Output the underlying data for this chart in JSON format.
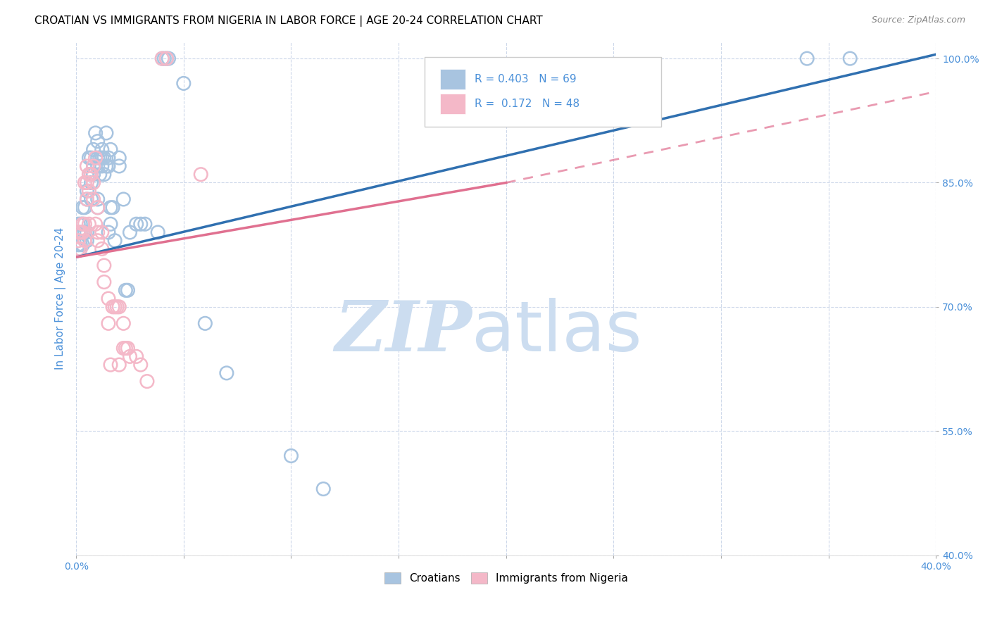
{
  "title": "CROATIAN VS IMMIGRANTS FROM NIGERIA IN LABOR FORCE | AGE 20-24 CORRELATION CHART",
  "source": "Source: ZipAtlas.com",
  "ylabel": "In Labor Force | Age 20-24",
  "xlim": [
    0.0,
    0.4
  ],
  "ylim": [
    0.4,
    1.02
  ],
  "ytick_labels": [
    "40.0%",
    "55.0%",
    "70.0%",
    "85.0%",
    "100.0%"
  ],
  "ytick_vals": [
    0.4,
    0.55,
    0.7,
    0.85,
    1.0
  ],
  "xtick_positions": [
    0.0,
    0.05,
    0.1,
    0.15,
    0.2,
    0.25,
    0.3,
    0.35,
    0.4
  ],
  "xtick_labels_sparse": [
    "0.0%",
    "",
    "",
    "",
    "",
    "",
    "",
    "",
    "40.0%"
  ],
  "blue_R": 0.403,
  "blue_N": 69,
  "pink_R": 0.172,
  "pink_N": 48,
  "blue_color": "#a8c4e0",
  "pink_color": "#f4b8c8",
  "blue_line_color": "#3070b0",
  "pink_line_color": "#e07090",
  "blue_scatter": [
    [
      0.001,
      0.775
    ],
    [
      0.001,
      0.8
    ],
    [
      0.001,
      0.775
    ],
    [
      0.001,
      0.79
    ],
    [
      0.002,
      0.8
    ],
    [
      0.002,
      0.775
    ],
    [
      0.002,
      0.79
    ],
    [
      0.003,
      0.79
    ],
    [
      0.003,
      0.8
    ],
    [
      0.003,
      0.82
    ],
    [
      0.003,
      0.775
    ],
    [
      0.004,
      0.82
    ],
    [
      0.004,
      0.79
    ],
    [
      0.005,
      0.78
    ],
    [
      0.005,
      0.84
    ],
    [
      0.005,
      0.83
    ],
    [
      0.005,
      0.79
    ],
    [
      0.006,
      0.88
    ],
    [
      0.006,
      0.86
    ],
    [
      0.007,
      0.85
    ],
    [
      0.007,
      0.88
    ],
    [
      0.007,
      0.83
    ],
    [
      0.008,
      0.86
    ],
    [
      0.008,
      0.89
    ],
    [
      0.008,
      0.87
    ],
    [
      0.009,
      0.91
    ],
    [
      0.01,
      0.9
    ],
    [
      0.01,
      0.88
    ],
    [
      0.01,
      0.87
    ],
    [
      0.01,
      0.83
    ],
    [
      0.01,
      0.82
    ],
    [
      0.011,
      0.88
    ],
    [
      0.011,
      0.86
    ],
    [
      0.012,
      0.87
    ],
    [
      0.012,
      0.88
    ],
    [
      0.012,
      0.89
    ],
    [
      0.013,
      0.86
    ],
    [
      0.013,
      0.88
    ],
    [
      0.014,
      0.87
    ],
    [
      0.014,
      0.91
    ],
    [
      0.015,
      0.87
    ],
    [
      0.015,
      0.79
    ],
    [
      0.015,
      0.88
    ],
    [
      0.016,
      0.8
    ],
    [
      0.016,
      0.82
    ],
    [
      0.016,
      0.89
    ],
    [
      0.017,
      0.82
    ],
    [
      0.018,
      0.78
    ],
    [
      0.02,
      0.88
    ],
    [
      0.02,
      0.87
    ],
    [
      0.022,
      0.83
    ],
    [
      0.023,
      0.72
    ],
    [
      0.024,
      0.72
    ],
    [
      0.025,
      0.79
    ],
    [
      0.028,
      0.8
    ],
    [
      0.03,
      0.8
    ],
    [
      0.032,
      0.8
    ],
    [
      0.038,
      0.79
    ],
    [
      0.04,
      1.0
    ],
    [
      0.041,
      1.0
    ],
    [
      0.042,
      1.0
    ],
    [
      0.043,
      1.0
    ],
    [
      0.05,
      0.97
    ],
    [
      0.06,
      0.68
    ],
    [
      0.07,
      0.62
    ],
    [
      0.1,
      0.52
    ],
    [
      0.115,
      0.48
    ],
    [
      0.34,
      1.0
    ],
    [
      0.36,
      1.0
    ]
  ],
  "pink_scatter": [
    [
      0.001,
      0.77
    ],
    [
      0.001,
      0.78
    ],
    [
      0.001,
      0.79
    ],
    [
      0.002,
      0.77
    ],
    [
      0.002,
      0.79
    ],
    [
      0.003,
      0.79
    ],
    [
      0.003,
      0.8
    ],
    [
      0.004,
      0.78
    ],
    [
      0.004,
      0.8
    ],
    [
      0.004,
      0.85
    ],
    [
      0.005,
      0.83
    ],
    [
      0.005,
      0.85
    ],
    [
      0.005,
      0.87
    ],
    [
      0.006,
      0.8
    ],
    [
      0.006,
      0.84
    ],
    [
      0.006,
      0.86
    ],
    [
      0.007,
      0.86
    ],
    [
      0.008,
      0.83
    ],
    [
      0.008,
      0.85
    ],
    [
      0.008,
      0.87
    ],
    [
      0.009,
      0.88
    ],
    [
      0.009,
      0.8
    ],
    [
      0.01,
      0.79
    ],
    [
      0.01,
      0.82
    ],
    [
      0.01,
      0.78
    ],
    [
      0.012,
      0.77
    ],
    [
      0.012,
      0.79
    ],
    [
      0.013,
      0.75
    ],
    [
      0.013,
      0.73
    ],
    [
      0.015,
      0.71
    ],
    [
      0.015,
      0.68
    ],
    [
      0.016,
      0.63
    ],
    [
      0.017,
      0.7
    ],
    [
      0.018,
      0.7
    ],
    [
      0.019,
      0.7
    ],
    [
      0.02,
      0.7
    ],
    [
      0.02,
      0.63
    ],
    [
      0.022,
      0.68
    ],
    [
      0.022,
      0.65
    ],
    [
      0.023,
      0.65
    ],
    [
      0.024,
      0.65
    ],
    [
      0.025,
      0.64
    ],
    [
      0.028,
      0.64
    ],
    [
      0.03,
      0.63
    ],
    [
      0.033,
      0.61
    ],
    [
      0.04,
      1.0
    ],
    [
      0.042,
      1.0
    ],
    [
      0.058,
      0.86
    ]
  ],
  "blue_line": [
    [
      0.0,
      0.76
    ],
    [
      0.4,
      1.005
    ]
  ],
  "pink_line_solid": [
    [
      0.0,
      0.76
    ],
    [
      0.2,
      0.85
    ]
  ],
  "pink_line_dashed": [
    [
      0.2,
      0.85
    ],
    [
      0.4,
      0.96
    ]
  ],
  "background_color": "#ffffff",
  "grid_color": "#c8d4e8",
  "watermark_color": "#ccddf0",
  "legend_label_blue": "Croatians",
  "legend_label_pink": "Immigrants from Nigeria",
  "title_fontsize": 11,
  "axis_label_color": "#4a90d9",
  "tick_color": "#4a90d9",
  "legend_box_color": "#4a90d9"
}
